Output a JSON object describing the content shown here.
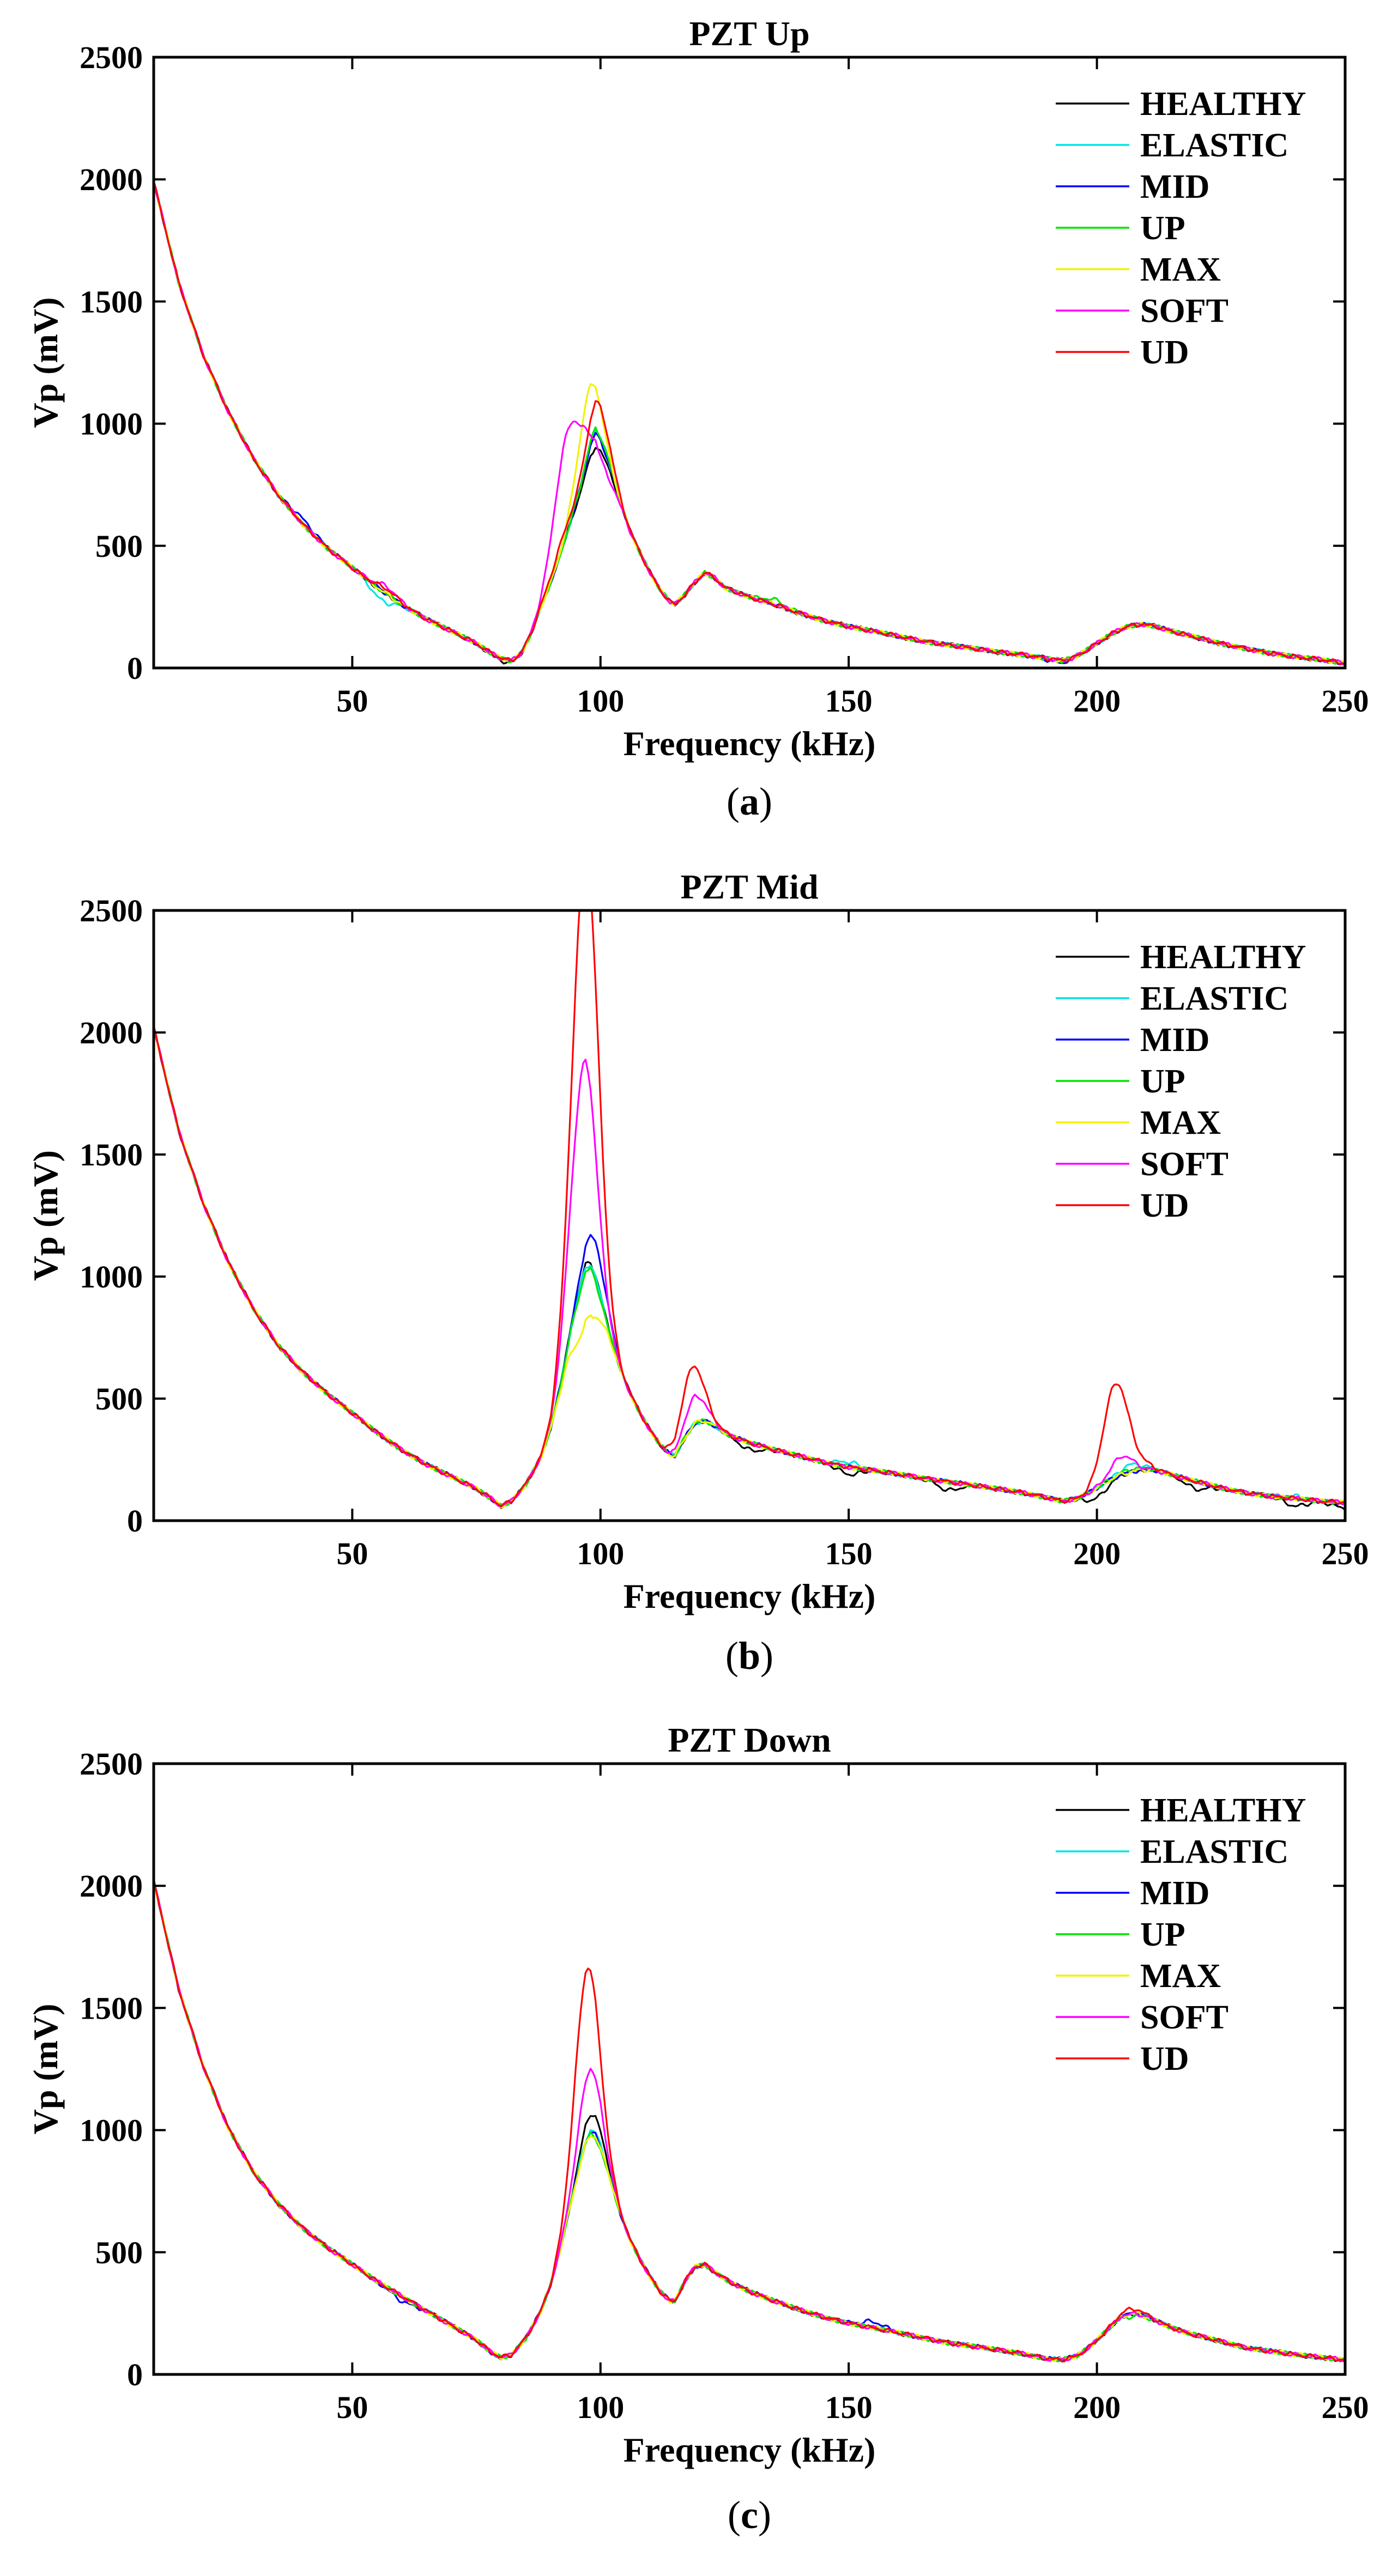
{
  "chart_data": [
    {
      "type": "line",
      "title": "PZT Up",
      "caption_prefix": "(",
      "caption_letter": "a",
      "caption_suffix": ")",
      "xlabel": "Frequency (kHz)",
      "ylabel": "Vp (mV)",
      "xlim": [
        10,
        250
      ],
      "ylim": [
        0,
        2500
      ],
      "xticks": [
        50,
        100,
        150,
        200,
        250
      ],
      "yticks": [
        0,
        500,
        1000,
        1500,
        2000,
        2500
      ],
      "legend_location": "top-right",
      "base_curve": [
        [
          10,
          1990
        ],
        [
          15,
          1580
        ],
        [
          20,
          1280
        ],
        [
          25,
          1050
        ],
        [
          30,
          860
        ],
        [
          35,
          710
        ],
        [
          40,
          590
        ],
        [
          45,
          490
        ],
        [
          50,
          410
        ],
        [
          55,
          330
        ],
        [
          60,
          260
        ],
        [
          65,
          200
        ],
        [
          70,
          150
        ],
        [
          75,
          100
        ],
        [
          78,
          60
        ],
        [
          80,
          40
        ],
        [
          82,
          30
        ],
        [
          84,
          60
        ],
        [
          86,
          140
        ],
        [
          88,
          250
        ],
        [
          90,
          350
        ],
        [
          92,
          470
        ],
        [
          94,
          600
        ],
        [
          96,
          740
        ],
        [
          97,
          830
        ],
        [
          98,
          910
        ],
        [
          99,
          960
        ],
        [
          100,
          930
        ],
        [
          101,
          880
        ],
        [
          102,
          820
        ],
        [
          104,
          680
        ],
        [
          106,
          560
        ],
        [
          108,
          470
        ],
        [
          110,
          390
        ],
        [
          112,
          320
        ],
        [
          114,
          270
        ],
        [
          115,
          260
        ],
        [
          117,
          300
        ],
        [
          119,
          350
        ],
        [
          121,
          390
        ],
        [
          123,
          370
        ],
        [
          125,
          330
        ],
        [
          130,
          290
        ],
        [
          135,
          260
        ],
        [
          140,
          225
        ],
        [
          145,
          195
        ],
        [
          150,
          170
        ],
        [
          155,
          150
        ],
        [
          160,
          130
        ],
        [
          165,
          110
        ],
        [
          170,
          95
        ],
        [
          175,
          80
        ],
        [
          180,
          65
        ],
        [
          185,
          55
        ],
        [
          190,
          40
        ],
        [
          193,
          30
        ],
        [
          195,
          40
        ],
        [
          197,
          60
        ],
        [
          200,
          100
        ],
        [
          203,
          140
        ],
        [
          206,
          170
        ],
        [
          209,
          180
        ],
        [
          212,
          170
        ],
        [
          215,
          150
        ],
        [
          220,
          125
        ],
        [
          225,
          100
        ],
        [
          230,
          80
        ],
        [
          235,
          60
        ],
        [
          240,
          45
        ],
        [
          245,
          35
        ],
        [
          250,
          20
        ]
      ],
      "series": [
        {
          "name": "HEALTHY",
          "color": "#000000",
          "adjust": [
            [
              81,
              -10
            ],
            [
              99,
              -50
            ]
          ]
        },
        {
          "name": "ELASTIC",
          "color": "#00e5e5",
          "adjust": [
            [
              56,
              -40
            ],
            [
              99,
              10
            ]
          ]
        },
        {
          "name": "MID",
          "color": "#0000ff",
          "adjust": [
            [
              40,
              20
            ],
            [
              99,
              0
            ],
            [
              192,
              -10
            ]
          ]
        },
        {
          "name": "UP",
          "color": "#00e600",
          "adjust": [
            [
              99,
              20
            ],
            [
              135,
              20
            ]
          ]
        },
        {
          "name": "MAX",
          "color": "#f2f200",
          "adjust": [
            [
              97,
              150
            ],
            [
              98,
              110
            ]
          ]
        },
        {
          "name": "SOFT",
          "color": "#ff00ff",
          "adjust": [
            [
              92,
              220
            ],
            [
              94,
              190
            ],
            [
              96,
              100
            ],
            [
              100,
              -90
            ],
            [
              57,
              30
            ]
          ]
        },
        {
          "name": "UD",
          "color": "#ff0000",
          "adjust": [
            [
              57,
              20
            ],
            [
              92,
              40
            ],
            [
              99,
              60
            ],
            [
              100,
              80
            ]
          ]
        }
      ]
    },
    {
      "type": "line",
      "title": "PZT Mid",
      "caption_prefix": "(",
      "caption_letter": "b",
      "caption_suffix": ")",
      "xlabel": "Frequency (kHz)",
      "ylabel": "Vp (mV)",
      "xlim": [
        10,
        250
      ],
      "ylim": [
        0,
        2500
      ],
      "xticks": [
        50,
        100,
        150,
        200,
        250
      ],
      "yticks": [
        0,
        500,
        1000,
        1500,
        2000,
        2500
      ],
      "legend_location": "top-right",
      "base_curve": [
        [
          10,
          2020
        ],
        [
          15,
          1600
        ],
        [
          20,
          1300
        ],
        [
          25,
          1060
        ],
        [
          30,
          870
        ],
        [
          35,
          720
        ],
        [
          40,
          610
        ],
        [
          45,
          520
        ],
        [
          50,
          440
        ],
        [
          55,
          360
        ],
        [
          60,
          290
        ],
        [
          65,
          230
        ],
        [
          70,
          180
        ],
        [
          75,
          130
        ],
        [
          78,
          90
        ],
        [
          80,
          60
        ],
        [
          82,
          80
        ],
        [
          85,
          150
        ],
        [
          88,
          260
        ],
        [
          90,
          380
        ],
        [
          92,
          560
        ],
        [
          94,
          780
        ],
        [
          96,
          960
        ],
        [
          97,
          1040
        ],
        [
          98,
          1050
        ],
        [
          99,
          1000
        ],
        [
          100,
          920
        ],
        [
          102,
          760
        ],
        [
          104,
          620
        ],
        [
          106,
          520
        ],
        [
          108,
          440
        ],
        [
          110,
          370
        ],
        [
          112,
          310
        ],
        [
          114,
          270
        ],
        [
          115,
          265
        ],
        [
          117,
          340
        ],
        [
          119,
          400
        ],
        [
          121,
          410
        ],
        [
          123,
          390
        ],
        [
          126,
          350
        ],
        [
          130,
          320
        ],
        [
          135,
          290
        ],
        [
          140,
          265
        ],
        [
          145,
          240
        ],
        [
          150,
          220
        ],
        [
          155,
          205
        ],
        [
          160,
          190
        ],
        [
          165,
          175
        ],
        [
          170,
          160
        ],
        [
          175,
          145
        ],
        [
          180,
          130
        ],
        [
          185,
          115
        ],
        [
          190,
          95
        ],
        [
          193,
          80
        ],
        [
          196,
          90
        ],
        [
          199,
          120
        ],
        [
          202,
          160
        ],
        [
          205,
          190
        ],
        [
          208,
          205
        ],
        [
          211,
          210
        ],
        [
          214,
          195
        ],
        [
          218,
          170
        ],
        [
          222,
          150
        ],
        [
          226,
          130
        ],
        [
          230,
          115
        ],
        [
          235,
          100
        ],
        [
          240,
          90
        ],
        [
          245,
          80
        ],
        [
          250,
          75
        ]
      ],
      "series": [
        {
          "name": "HEALTHY",
          "color": "#000000",
          "adjust": [
            [
              97,
              10
            ],
            [
              130,
              -30
            ],
            [
              150,
              -30
            ],
            [
              170,
              -35
            ],
            [
              200,
              -40
            ],
            [
              220,
              -30
            ],
            [
              240,
              -30
            ],
            [
              250,
              -25
            ]
          ]
        },
        {
          "name": "ELASTIC",
          "color": "#00e5e5",
          "adjust": [
            [
              97,
              0
            ],
            [
              150,
              20
            ],
            [
              207,
              30
            ],
            [
              240,
              10
            ]
          ]
        },
        {
          "name": "MID",
          "color": "#0000ff",
          "adjust": [
            [
              97,
              20
            ],
            [
              99,
              70
            ],
            [
              100,
              60
            ]
          ]
        },
        {
          "name": "UP",
          "color": "#00e600",
          "adjust": [
            [
              98,
              -20
            ],
            [
              207,
              10
            ]
          ]
        },
        {
          "name": "MAX",
          "color": "#f2f200",
          "adjust": [
            [
              96,
              -70
            ],
            [
              97,
              -80
            ],
            [
              98,
              -90
            ]
          ]
        },
        {
          "name": "SOFT",
          "color": "#ff00ff",
          "adjust": [
            [
              94,
              150
            ],
            [
              96,
              350
            ],
            [
              97,
              310
            ],
            [
              98,
              180
            ],
            [
              119,
              110
            ],
            [
              205,
              75
            ]
          ]
        },
        {
          "name": "UD",
          "color": "#ff0000",
          "adjust": [
            [
              94,
              200
            ],
            [
              96,
              640
            ],
            [
              97,
              560
            ],
            [
              98,
              400
            ],
            [
              99,
              200
            ],
            [
              118,
              130
            ],
            [
              119,
              120
            ],
            [
              203,
              245
            ],
            [
              205,
              180
            ],
            [
              209,
              20
            ]
          ]
        }
      ]
    },
    {
      "type": "line",
      "title": "PZT Down",
      "caption_prefix": "(",
      "caption_letter": "c",
      "caption_suffix": ")",
      "xlabel": "Frequency (kHz)",
      "ylabel": "Vp (mV)",
      "xlim": [
        10,
        250
      ],
      "ylim": [
        0,
        2500
      ],
      "xticks": [
        50,
        100,
        150,
        200,
        250
      ],
      "yticks": [
        0,
        500,
        1000,
        1500,
        2000,
        2500
      ],
      "legend_location": "top-right",
      "base_curve": [
        [
          10,
          2020
        ],
        [
          15,
          1580
        ],
        [
          20,
          1260
        ],
        [
          25,
          1010
        ],
        [
          30,
          830
        ],
        [
          35,
          700
        ],
        [
          40,
          600
        ],
        [
          45,
          520
        ],
        [
          50,
          450
        ],
        [
          55,
          380
        ],
        [
          60,
          320
        ],
        [
          65,
          260
        ],
        [
          70,
          200
        ],
        [
          75,
          140
        ],
        [
          78,
          90
        ],
        [
          80,
          70
        ],
        [
          82,
          80
        ],
        [
          85,
          150
        ],
        [
          88,
          260
        ],
        [
          90,
          370
        ],
        [
          92,
          520
        ],
        [
          94,
          700
        ],
        [
          96,
          880
        ],
        [
          97,
          960
        ],
        [
          98,
          1000
        ],
        [
          99,
          990
        ],
        [
          100,
          940
        ],
        [
          102,
          800
        ],
        [
          104,
          660
        ],
        [
          106,
          550
        ],
        [
          108,
          470
        ],
        [
          110,
          400
        ],
        [
          112,
          340
        ],
        [
          114,
          300
        ],
        [
          115,
          300
        ],
        [
          117,
          380
        ],
        [
          119,
          440
        ],
        [
          121,
          450
        ],
        [
          123,
          420
        ],
        [
          126,
          380
        ],
        [
          130,
          340
        ],
        [
          135,
          300
        ],
        [
          140,
          265
        ],
        [
          145,
          235
        ],
        [
          150,
          210
        ],
        [
          155,
          190
        ],
        [
          160,
          170
        ],
        [
          165,
          150
        ],
        [
          170,
          130
        ],
        [
          175,
          115
        ],
        [
          180,
          100
        ],
        [
          185,
          85
        ],
        [
          190,
          65
        ],
        [
          193,
          60
        ],
        [
          196,
          75
        ],
        [
          199,
          120
        ],
        [
          202,
          180
        ],
        [
          205,
          240
        ],
        [
          208,
          250
        ],
        [
          211,
          230
        ],
        [
          214,
          200
        ],
        [
          218,
          170
        ],
        [
          222,
          150
        ],
        [
          226,
          130
        ],
        [
          230,
          110
        ],
        [
          235,
          95
        ],
        [
          240,
          80
        ],
        [
          245,
          70
        ],
        [
          250,
          60
        ]
      ],
      "series": [
        {
          "name": "HEALTHY",
          "color": "#000000",
          "adjust": [
            [
              98,
              40
            ],
            [
              99,
              30
            ]
          ]
        },
        {
          "name": "ELASTIC",
          "color": "#00e5e5",
          "adjust": [
            [
              99,
              0
            ],
            [
              207,
              0
            ]
          ]
        },
        {
          "name": "MID",
          "color": "#0000ff",
          "adjust": [
            [
              98,
              -10
            ],
            [
              155,
              25
            ],
            [
              60,
              -20
            ]
          ]
        },
        {
          "name": "UP",
          "color": "#00e600",
          "adjust": [
            [
              99,
              -20
            ],
            [
              207,
              -10
            ]
          ]
        },
        {
          "name": "MAX",
          "color": "#f2f200",
          "adjust": [
            [
              98,
              -20
            ]
          ]
        },
        {
          "name": "SOFT",
          "color": "#ff00ff",
          "adjust": [
            [
              97,
              110
            ],
            [
              98,
              100
            ],
            [
              99,
              60
            ]
          ]
        },
        {
          "name": "UD",
          "color": "#ff0000",
          "adjust": [
            [
              96,
              200
            ],
            [
              97,
              260
            ],
            [
              98,
              200
            ],
            [
              99,
              100
            ],
            [
              207,
              20
            ]
          ]
        }
      ]
    }
  ]
}
